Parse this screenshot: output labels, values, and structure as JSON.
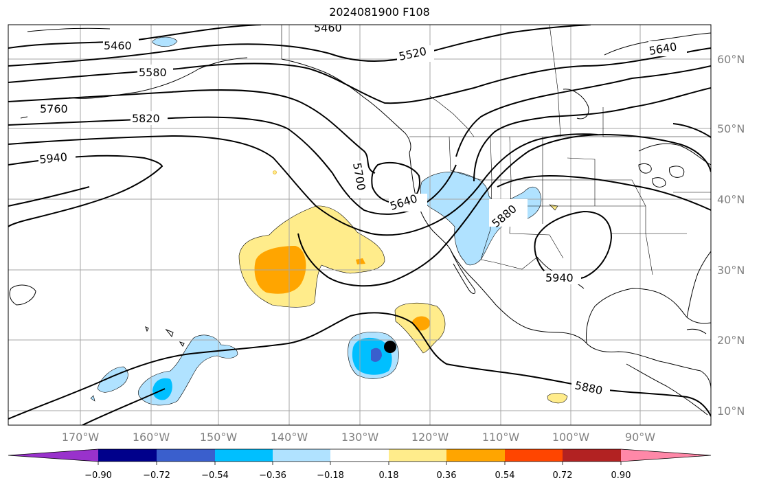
{
  "title": "2024081900 F108",
  "map": {
    "lon_labels": [
      "170°W",
      "160°W",
      "150°W",
      "140°W",
      "130°W",
      "120°W",
      "110°W",
      "100°W",
      "90°W"
    ],
    "lat_labels": [
      "60°N",
      "50°N",
      "40°N",
      "30°N",
      "20°N",
      "10°N"
    ],
    "contour_labels": [
      "5460",
      "5460",
      "5520",
      "5580",
      "5640",
      "5640",
      "5700",
      "5760",
      "5820",
      "5880",
      "5880",
      "5940",
      "5940"
    ],
    "marker": "storm-center-dot"
  },
  "colorbar": {
    "ticks": [
      "−0.90",
      "−0.72",
      "−0.54",
      "−0.36",
      "−0.18",
      "0.18",
      "0.36",
      "0.54",
      "0.72",
      "0.90"
    ],
    "colors": [
      "#9932cc",
      "#00008b",
      "#3a5fcd",
      "#00bfff",
      "#b0e2ff",
      "#ffffff",
      "#ffec8b",
      "#ffa500",
      "#ff4500",
      "#b22222",
      "#ff88a8"
    ]
  }
}
